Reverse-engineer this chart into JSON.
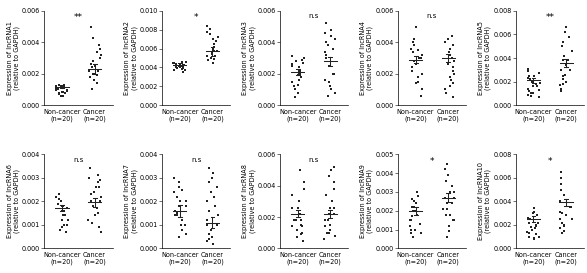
{
  "panels": [
    {
      "label": "lncRNA1",
      "sig": "**",
      "ylim": [
        0,
        0.006
      ],
      "yticks": [
        0.0,
        0.002,
        0.004,
        0.006
      ],
      "nc_mean": 0.00115,
      "nc_sem": 8e-05,
      "c_mean": 0.0023,
      "c_sem": 0.0003,
      "nc_pts": [
        0.0006,
        0.00075,
        0.0008,
        0.00085,
        0.0009,
        0.00095,
        0.001,
        0.00105,
        0.0011,
        0.00115,
        0.0012,
        0.00125,
        0.0013,
        0.0013,
        0.00125,
        0.0012,
        0.00095,
        0.00085,
        0.0007,
        0.0006
      ],
      "c_pts": [
        0.001,
        0.0014,
        0.0016,
        0.0018,
        0.002,
        0.0022,
        0.0024,
        0.0026,
        0.0028,
        0.003,
        0.0032,
        0.0034,
        0.0036,
        0.0038,
        0.002,
        0.0022,
        0.0019,
        0.0025,
        0.0043,
        0.005
      ]
    },
    {
      "label": "lncRNA2",
      "sig": "*",
      "ylim": [
        0,
        0.01
      ],
      "yticks": [
        0.0,
        0.002,
        0.004,
        0.006,
        0.008,
        0.01
      ],
      "nc_mean": 0.0043,
      "nc_sem": 0.00015,
      "c_mean": 0.0057,
      "c_sem": 0.00045,
      "nc_pts": [
        0.0035,
        0.0037,
        0.0038,
        0.0039,
        0.004,
        0.0041,
        0.0042,
        0.0043,
        0.0044,
        0.0045,
        0.0046,
        0.0046,
        0.0045,
        0.0044,
        0.0043,
        0.0042,
        0.0041,
        0.0039,
        0.0037,
        0.0035
      ],
      "c_pts": [
        0.0045,
        0.0048,
        0.005,
        0.0052,
        0.0054,
        0.0056,
        0.0058,
        0.006,
        0.0062,
        0.0065,
        0.0068,
        0.007,
        0.0072,
        0.0075,
        0.0078,
        0.0081,
        0.0084,
        0.0058,
        0.0052,
        0.0049
      ]
    },
    {
      "label": "lncRNA3",
      "sig": "n.s",
      "ylim": [
        0,
        0.006
      ],
      "yticks": [
        0.0,
        0.002,
        0.004,
        0.006
      ],
      "nc_mean": 0.0021,
      "nc_sem": 0.0002,
      "c_mean": 0.0028,
      "c_sem": 0.00028,
      "nc_pts": [
        0.0005,
        0.0008,
        0.0012,
        0.0015,
        0.0018,
        0.002,
        0.0022,
        0.0024,
        0.0026,
        0.0028,
        0.003,
        0.0031,
        0.0029,
        0.0027,
        0.0025,
        0.0022,
        0.0019,
        0.0016,
        0.0013,
        0.001
      ],
      "c_pts": [
        0.0006,
        0.001,
        0.0015,
        0.002,
        0.0025,
        0.003,
        0.0032,
        0.0034,
        0.0036,
        0.0038,
        0.004,
        0.0042,
        0.0044,
        0.0046,
        0.0048,
        0.0052,
        0.002,
        0.0016,
        0.0012,
        0.0008
      ]
    },
    {
      "label": "lncRNA4",
      "sig": "n.s",
      "ylim": [
        0,
        0.006
      ],
      "yticks": [
        0.0,
        0.002,
        0.004,
        0.006
      ],
      "nc_mean": 0.0029,
      "nc_sem": 0.00022,
      "c_mean": 0.003,
      "c_sem": 0.00025,
      "nc_pts": [
        0.001,
        0.0015,
        0.002,
        0.0024,
        0.0028,
        0.003,
        0.0032,
        0.0034,
        0.0036,
        0.0038,
        0.004,
        0.0042,
        0.0035,
        0.003,
        0.0026,
        0.0022,
        0.0018,
        0.0014,
        0.005,
        0.0006
      ],
      "c_pts": [
        0.0005,
        0.0008,
        0.0012,
        0.0016,
        0.002,
        0.0024,
        0.0028,
        0.0032,
        0.0036,
        0.004,
        0.0042,
        0.0044,
        0.0038,
        0.0034,
        0.003,
        0.0026,
        0.0022,
        0.0018,
        0.0014,
        0.001
      ]
    },
    {
      "label": "lncRNA5",
      "sig": "**",
      "ylim": [
        0,
        0.008
      ],
      "yticks": [
        0.0,
        0.002,
        0.004,
        0.006,
        0.008
      ],
      "nc_mean": 0.0021,
      "nc_sem": 0.00018,
      "c_mean": 0.0036,
      "c_sem": 0.00035,
      "nc_pts": [
        0.001,
        0.0013,
        0.0016,
        0.0019,
        0.0022,
        0.0025,
        0.0027,
        0.0029,
        0.0031,
        0.0025,
        0.0023,
        0.002,
        0.0018,
        0.0016,
        0.0014,
        0.0012,
        0.001,
        0.0009,
        0.0008,
        0.0007
      ],
      "c_pts": [
        0.0018,
        0.0022,
        0.0026,
        0.003,
        0.0034,
        0.0038,
        0.0042,
        0.0046,
        0.005,
        0.0054,
        0.0058,
        0.0062,
        0.0066,
        0.0038,
        0.003,
        0.0025,
        0.002,
        0.0017,
        0.0014,
        0.0012
      ]
    }
  ],
  "panels2": [
    {
      "label": "lncRNA6",
      "sig": "n.s",
      "ylim": [
        0,
        0.004
      ],
      "yticks": [
        0.0,
        0.001,
        0.002,
        0.003,
        0.004
      ],
      "nc_mean": 0.0017,
      "nc_sem": 0.00013,
      "c_mean": 0.00195,
      "c_sem": 0.00018,
      "nc_pts": [
        0.0008,
        0.001,
        0.0012,
        0.0014,
        0.0016,
        0.0018,
        0.0019,
        0.002,
        0.0021,
        0.0022,
        0.0023,
        0.002,
        0.0018,
        0.0017,
        0.0016,
        0.0014,
        0.0012,
        0.001,
        0.0009,
        0.0007
      ],
      "c_pts": [
        0.0007,
        0.0009,
        0.0011,
        0.0014,
        0.0017,
        0.002,
        0.0022,
        0.0024,
        0.0026,
        0.0028,
        0.003,
        0.0031,
        0.0029,
        0.0026,
        0.0023,
        0.002,
        0.0018,
        0.0015,
        0.0012,
        0.0034
      ]
    },
    {
      "label": "lncRNA7",
      "sig": "n.s",
      "ylim": [
        0,
        0.004
      ],
      "yticks": [
        0.0,
        0.001,
        0.002,
        0.003,
        0.004
      ],
      "nc_mean": 0.0016,
      "nc_sem": 0.00025,
      "c_mean": 0.0011,
      "c_sem": 0.00022,
      "nc_pts": [
        0.0018,
        0.002,
        0.0022,
        0.0024,
        0.0026,
        0.0028,
        0.003,
        0.0016,
        0.0014,
        0.0012,
        0.001,
        0.0008,
        0.0006,
        0.0005,
        0.001,
        0.0015,
        0.002,
        0.0025,
        0.0018,
        0.0014
      ],
      "c_pts": [
        0.0002,
        0.0003,
        0.0004,
        0.0005,
        0.0006,
        0.0008,
        0.001,
        0.0012,
        0.0014,
        0.0016,
        0.0018,
        0.002,
        0.0022,
        0.0024,
        0.0026,
        0.0028,
        0.003,
        0.0032,
        0.0034,
        0.001
      ]
    },
    {
      "label": "lncRNA8",
      "sig": "n.s",
      "ylim": [
        0,
        0.006
      ],
      "yticks": [
        0.0,
        0.002,
        0.004,
        0.006
      ],
      "nc_mean": 0.0022,
      "nc_sem": 0.00022,
      "c_mean": 0.0022,
      "c_sem": 0.00025,
      "nc_pts": [
        0.001,
        0.0014,
        0.0018,
        0.0022,
        0.0026,
        0.003,
        0.0034,
        0.0038,
        0.0042,
        0.0026,
        0.0022,
        0.0018,
        0.0015,
        0.0012,
        0.0009,
        0.0007,
        0.0005,
        0.005,
        0.0018,
        0.0014
      ],
      "c_pts": [
        0.001,
        0.0014,
        0.0018,
        0.0022,
        0.0026,
        0.003,
        0.0034,
        0.0038,
        0.0042,
        0.0046,
        0.005,
        0.0052,
        0.0026,
        0.0022,
        0.0018,
        0.0015,
        0.0012,
        0.001,
        0.0008,
        0.0006
      ]
    },
    {
      "label": "lncRNA9",
      "sig": "*",
      "ylim": [
        0,
        0.005
      ],
      "yticks": [
        0.0,
        0.001,
        0.002,
        0.003,
        0.004,
        0.005
      ],
      "nc_mean": 0.002,
      "nc_sem": 0.0002,
      "c_mean": 0.0027,
      "c_sem": 0.00022,
      "nc_pts": [
        0.0008,
        0.001,
        0.0013,
        0.0015,
        0.0018,
        0.002,
        0.0022,
        0.0024,
        0.0026,
        0.0028,
        0.003,
        0.0025,
        0.0022,
        0.002,
        0.0017,
        0.0015,
        0.0012,
        0.001,
        0.0008,
        0.0006
      ],
      "c_pts": [
        0.0015,
        0.0018,
        0.0021,
        0.0024,
        0.0027,
        0.003,
        0.0033,
        0.0036,
        0.0039,
        0.0042,
        0.0045,
        0.003,
        0.0027,
        0.0024,
        0.0021,
        0.0018,
        0.0015,
        0.0012,
        0.0009,
        0.0006
      ]
    },
    {
      "label": "lncRNA10",
      "sig": "*",
      "ylim": [
        0,
        0.008
      ],
      "yticks": [
        0.0,
        0.002,
        0.004,
        0.006,
        0.008
      ],
      "nc_mean": 0.0025,
      "nc_sem": 0.00025,
      "c_mean": 0.0039,
      "c_sem": 0.0003,
      "nc_pts": [
        0.001,
        0.0013,
        0.0016,
        0.0019,
        0.0022,
        0.0025,
        0.0028,
        0.0031,
        0.0034,
        0.003,
        0.0026,
        0.0022,
        0.0018,
        0.0014,
        0.0012,
        0.001,
        0.0009,
        0.0008,
        0.002,
        0.0017
      ],
      "c_pts": [
        0.002,
        0.0025,
        0.003,
        0.0035,
        0.004,
        0.0045,
        0.005,
        0.0055,
        0.006,
        0.0065,
        0.0039,
        0.0035,
        0.0031,
        0.0028,
        0.0025,
        0.0022,
        0.0019,
        0.0017,
        0.0015,
        0.0013
      ]
    }
  ],
  "dot_color": "#222222",
  "xlabel_nc": "Non-cancer\n(n=20)",
  "xlabel_c": "Cancer\n(n=20)",
  "dot_size": 3.5,
  "font_size": 5.0,
  "sig_font_size": 6.5
}
